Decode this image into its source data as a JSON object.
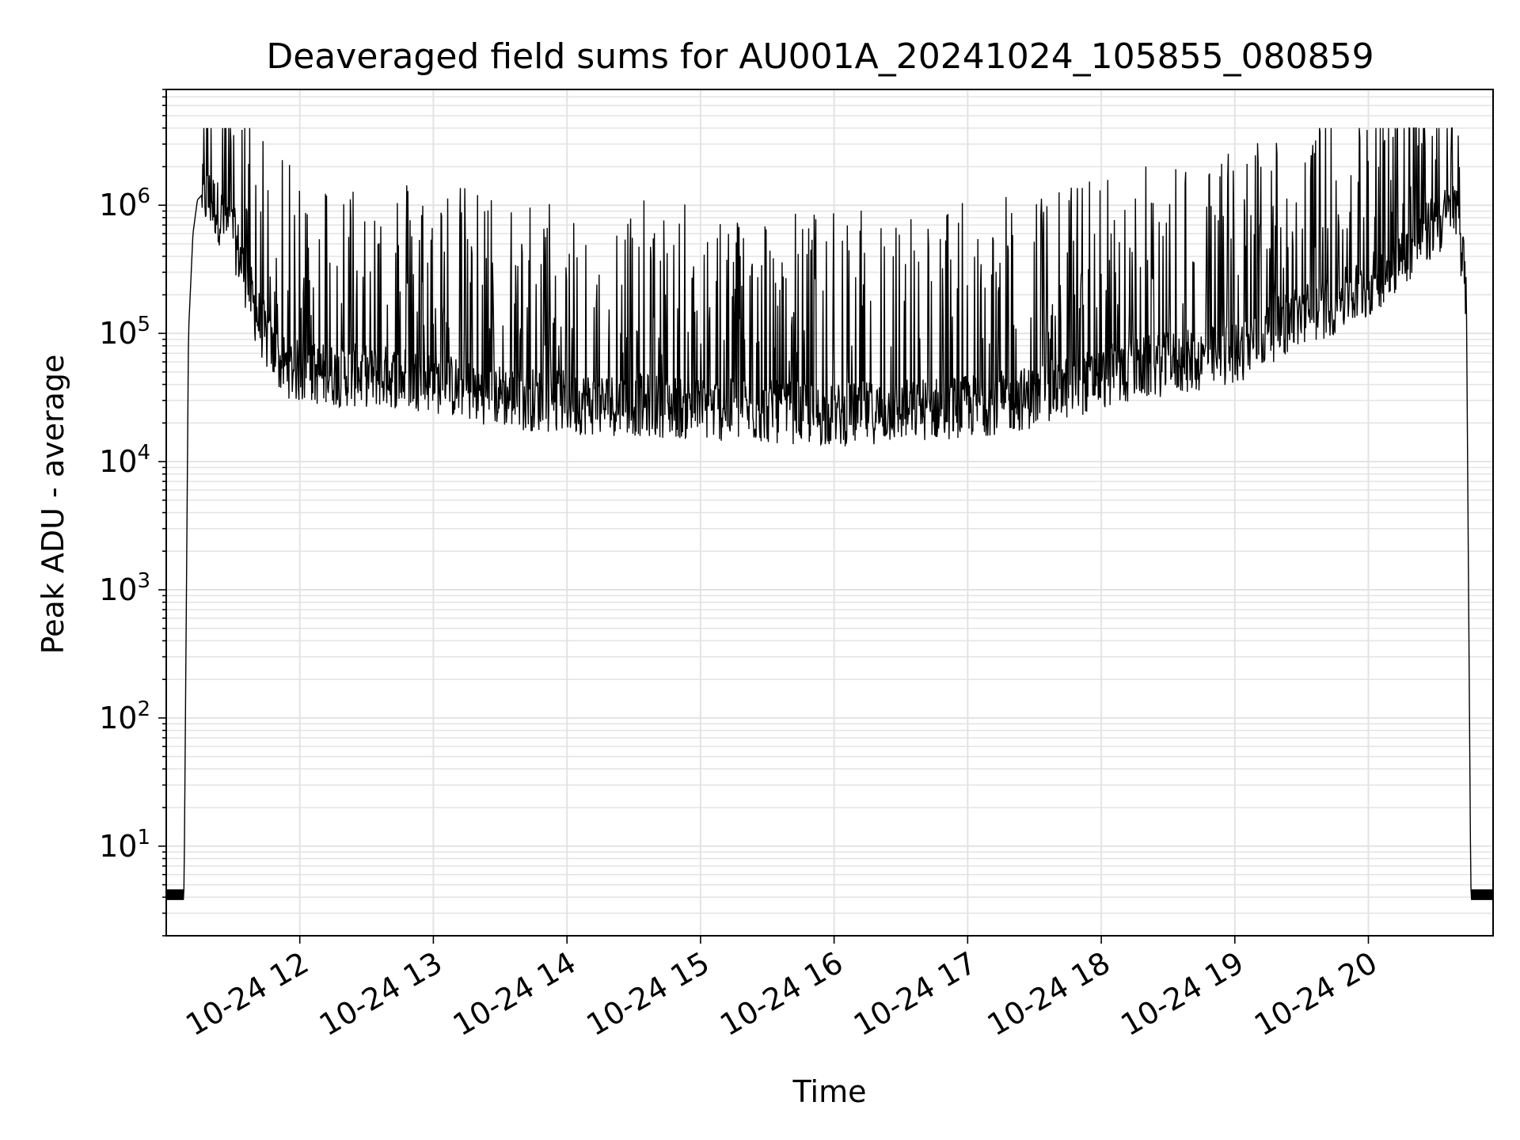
{
  "chart_data": {
    "type": "line",
    "title": "Deaveraged field sums for AU001A_20241024_105855_080859",
    "xlabel": "Time",
    "ylabel": "Peak ADU - average",
    "yscale": "log",
    "ylim": [
      2,
      8000000
    ],
    "xlim": [
      "2024-10-24 11:00",
      "2024-10-24 20:56"
    ],
    "grid": "both",
    "line_color": "#000000",
    "grid_color": "#e3e3e3",
    "x_ticks": [
      {
        "value": "2024-10-24 12:00",
        "label": "10-24 12"
      },
      {
        "value": "2024-10-24 13:00",
        "label": "10-24 13"
      },
      {
        "value": "2024-10-24 14:00",
        "label": "10-24 14"
      },
      {
        "value": "2024-10-24 15:00",
        "label": "10-24 15"
      },
      {
        "value": "2024-10-24 16:00",
        "label": "10-24 16"
      },
      {
        "value": "2024-10-24 17:00",
        "label": "10-24 17"
      },
      {
        "value": "2024-10-24 18:00",
        "label": "10-24 18"
      },
      {
        "value": "2024-10-24 19:00",
        "label": "10-24 19"
      },
      {
        "value": "2024-10-24 20:00",
        "label": "10-24 20"
      }
    ],
    "y_ticks": [
      {
        "value": 10,
        "base": "10",
        "exp": "1"
      },
      {
        "value": 100,
        "base": "10",
        "exp": "2"
      },
      {
        "value": 1000,
        "base": "10",
        "exp": "3"
      },
      {
        "value": 10000,
        "base": "10",
        "exp": "4"
      },
      {
        "value": 100000,
        "base": "10",
        "exp": "5"
      },
      {
        "value": 1000000,
        "base": "10",
        "exp": "6"
      }
    ],
    "series": [
      {
        "x": [
          "2024-10-24 11:00",
          "2024-10-24 11:05",
          "2024-10-24 11:08",
          "2024-10-24 11:10",
          "2024-10-24 11:12",
          "2024-10-24 11:14",
          "2024-10-24 11:16",
          "2024-10-24 11:20",
          "2024-10-24 11:25",
          "2024-10-24 11:30",
          "2024-10-24 11:35",
          "2024-10-24 11:40",
          "2024-10-24 11:45",
          "2024-10-24 11:50",
          "2024-10-24 11:55",
          "2024-10-24 12:00",
          "2024-10-24 12:10",
          "2024-10-24 12:20",
          "2024-10-24 12:30",
          "2024-10-24 12:40",
          "2024-10-24 12:50",
          "2024-10-24 13:00",
          "2024-10-24 13:10",
          "2024-10-24 13:20",
          "2024-10-24 13:30",
          "2024-10-24 13:40",
          "2024-10-24 13:50",
          "2024-10-24 14:00",
          "2024-10-24 14:15",
          "2024-10-24 14:30",
          "2024-10-24 14:45",
          "2024-10-24 15:00",
          "2024-10-24 15:15",
          "2024-10-24 15:30",
          "2024-10-24 15:45",
          "2024-10-24 16:00",
          "2024-10-24 16:15",
          "2024-10-24 16:30",
          "2024-10-24 16:45",
          "2024-10-24 17:00",
          "2024-10-24 17:15",
          "2024-10-24 17:30",
          "2024-10-24 17:45",
          "2024-10-24 18:00",
          "2024-10-24 18:15",
          "2024-10-24 18:30",
          "2024-10-24 18:45",
          "2024-10-24 19:00",
          "2024-10-24 19:15",
          "2024-10-24 19:30",
          "2024-10-24 19:45",
          "2024-10-24 20:00",
          "2024-10-24 20:15",
          "2024-10-24 20:30",
          "2024-10-24 20:40",
          "2024-10-24 20:44",
          "2024-10-24 20:46",
          "2024-10-24 20:48",
          "2024-10-24 20:52",
          "2024-10-24 20:56"
        ],
        "y": [
          4,
          4,
          4,
          100000,
          600000,
          1100000,
          1200000,
          1100000,
          800000,
          600000,
          300000,
          150000,
          90000,
          60000,
          55000,
          50000,
          48000,
          47000,
          47000,
          46000,
          45000,
          42000,
          38000,
          35000,
          33000,
          31000,
          30000,
          29000,
          28000,
          28000,
          27000,
          26000,
          25000,
          24500,
          24000,
          23000,
          24000,
          25000,
          26000,
          27000,
          29000,
          32000,
          38000,
          45000,
          52000,
          58000,
          62000,
          70000,
          100000,
          140000,
          170000,
          230000,
          400000,
          700000,
          900000,
          200000,
          4,
          4,
          4,
          4
        ]
      }
    ]
  }
}
